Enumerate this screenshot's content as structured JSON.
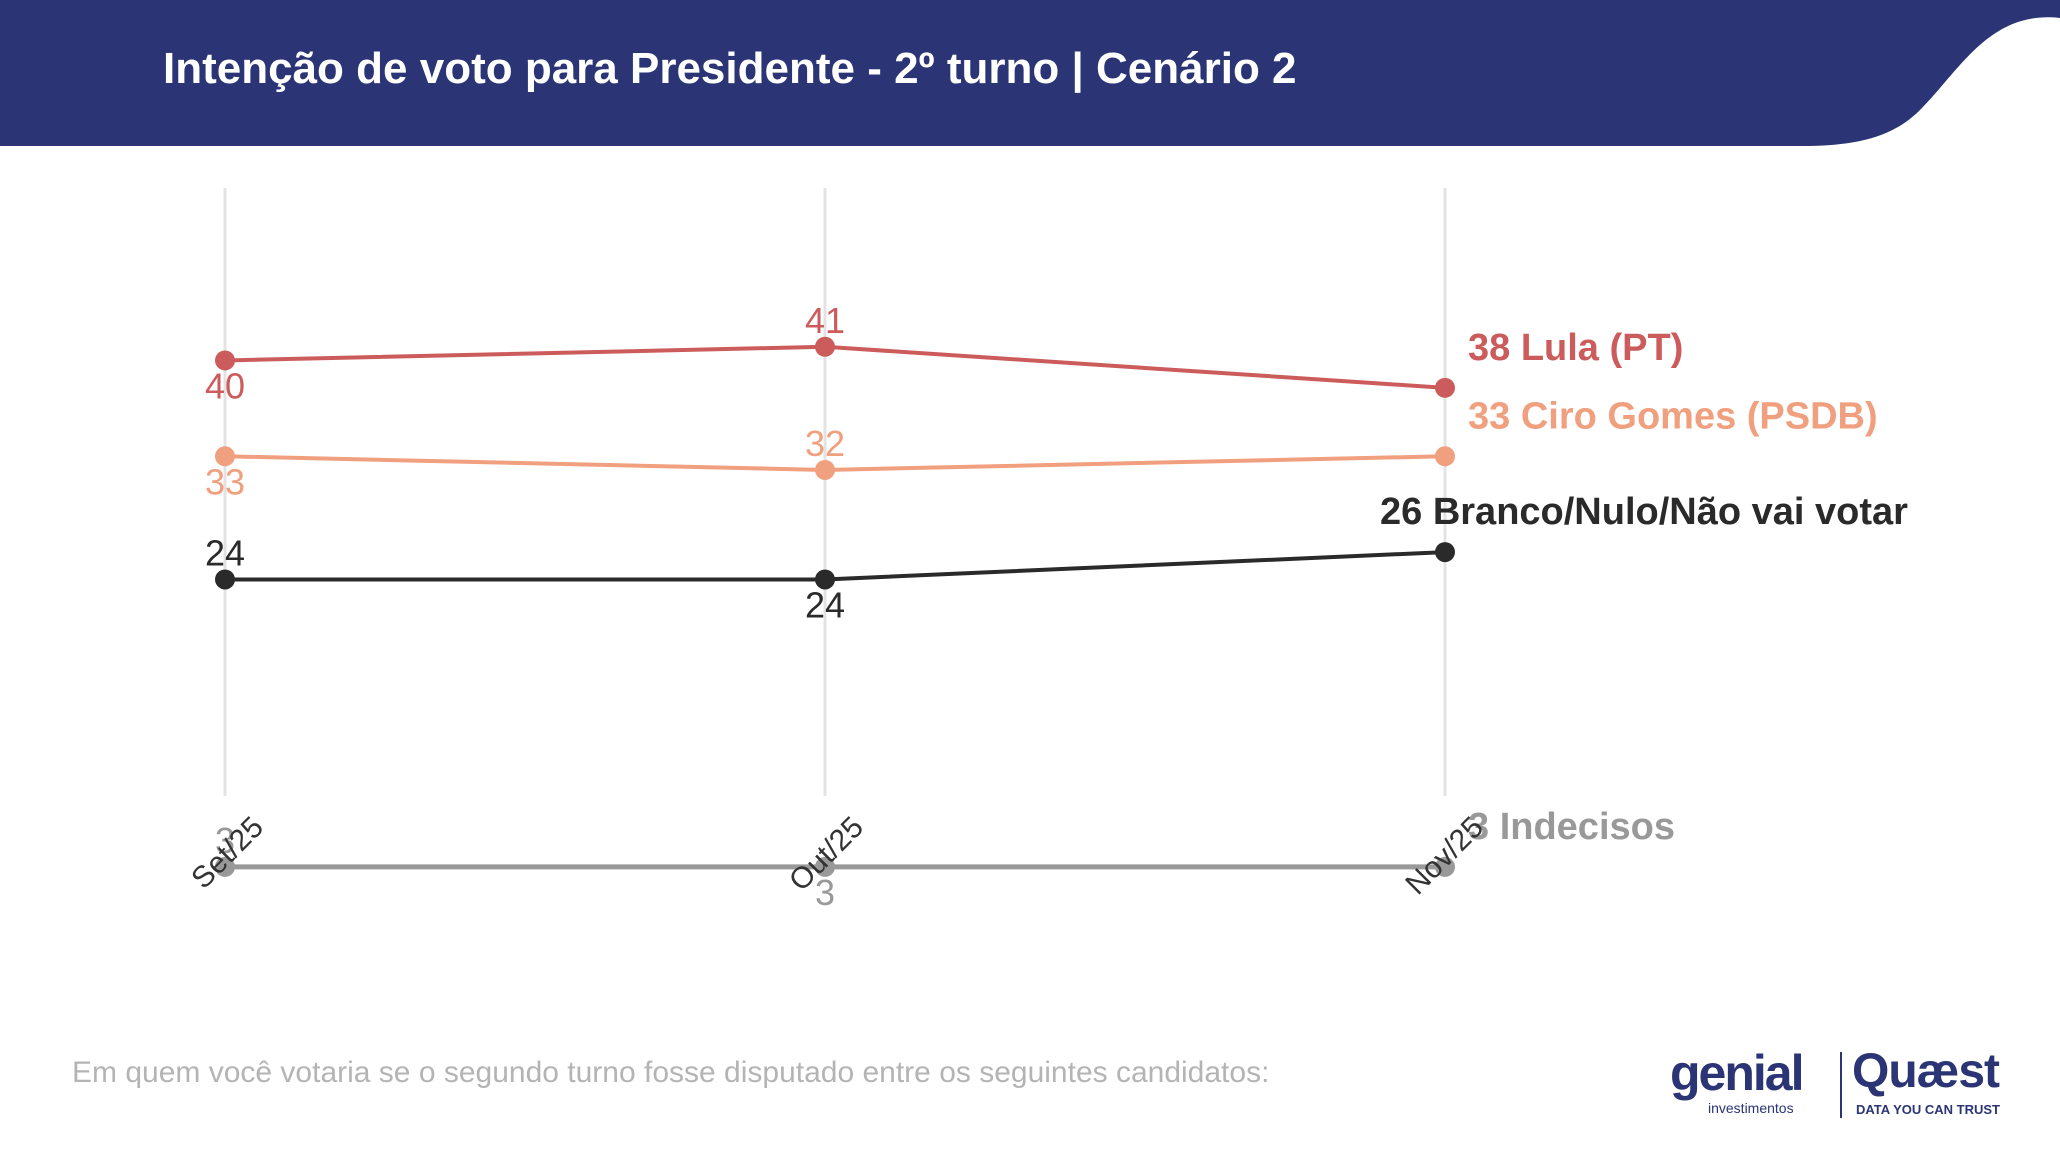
{
  "header": {
    "title": "Intenção de voto para Presidente - 2º turno | Cenário 2",
    "bg_color": "#2b3475"
  },
  "chart_data": {
    "type": "line",
    "categories": [
      "Set/25",
      "Out/25",
      "Nov/25"
    ],
    "ylim": [
      0,
      45
    ],
    "grid": "vertical",
    "series": [
      {
        "name": "Lula (PT)",
        "end_label": "38 Lula (PT)",
        "values": [
          40,
          41,
          38
        ],
        "color": "#cc5c5c"
      },
      {
        "name": "Ciro Gomes (PSDB)",
        "end_label": "33 Ciro Gomes (PSDB)",
        "values": [
          33,
          32,
          33
        ],
        "color": "#f0a07e"
      },
      {
        "name": "Branco/Nulo/Não vai votar",
        "end_label": "26 Branco/Nulo/Não vai votar",
        "values": [
          24,
          24,
          26
        ],
        "color": "#2a2a2a"
      },
      {
        "name": "Indecisos",
        "end_label": "3 Indecisos",
        "values": [
          3,
          3,
          3
        ],
        "color": "#999999"
      }
    ]
  },
  "footer": {
    "question": "Em quem você votaria se o segundo turno fosse disputado entre os seguintes candidatos:",
    "logo_genial": "genial",
    "logo_genial_sub": "investimentos",
    "logo_quaest": "Quæst",
    "logo_quaest_sub": "DATA YOU CAN TRUST"
  }
}
